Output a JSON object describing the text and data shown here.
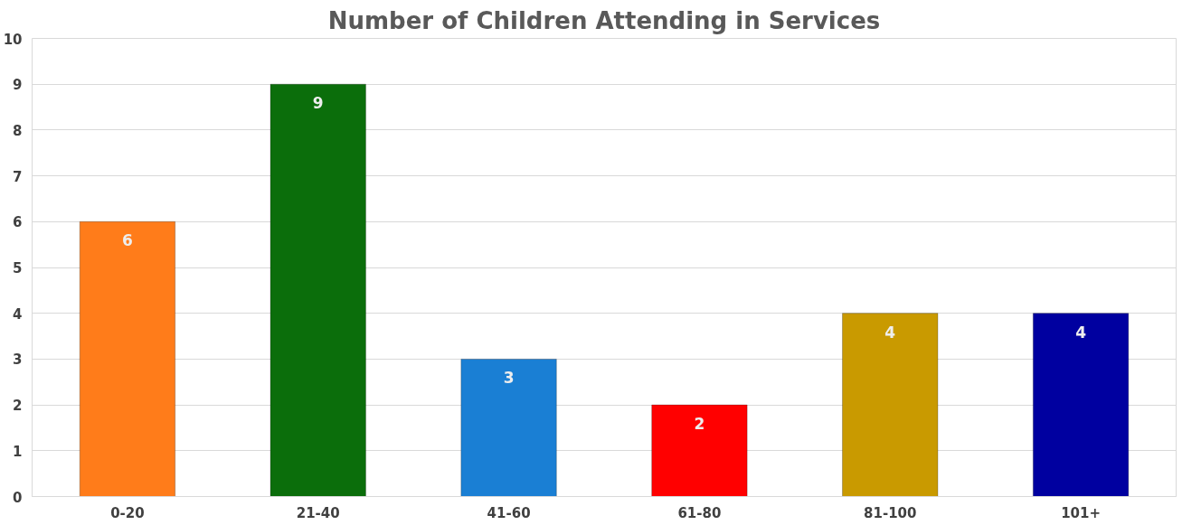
{
  "chart_data": {
    "type": "bar",
    "title": "Number of Children Attending in Services",
    "categories": [
      "0-20",
      "21-40",
      "41-60",
      "61-80",
      "81-100",
      "101+"
    ],
    "values": [
      6,
      9,
      3,
      2,
      4,
      4
    ],
    "colors": [
      "#ff7c1a",
      "#0b6e0b",
      "#1a7fd4",
      "#ff0000",
      "#c99a00",
      "#0000a0"
    ],
    "ylim": [
      0,
      10
    ],
    "yticks": [
      0,
      1,
      2,
      3,
      4,
      5,
      6,
      7,
      8,
      9,
      10
    ],
    "grid": "y",
    "data_labels": true
  }
}
